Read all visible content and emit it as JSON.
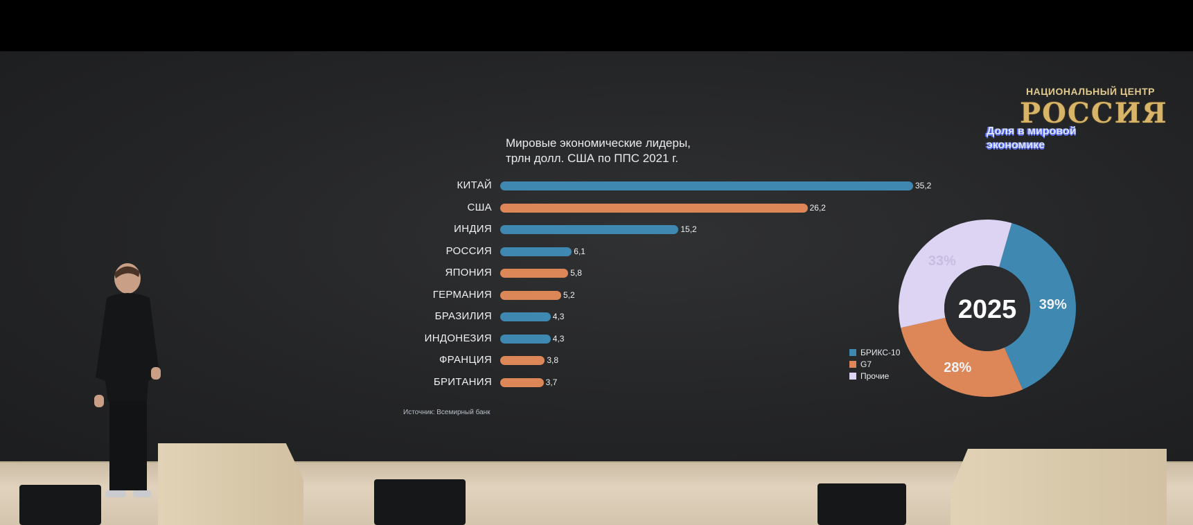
{
  "slide": {
    "chart_title": "Мировые экономические лидеры,\nтрлн долл. США по ППС 2021 г.",
    "source": "Источник: Всемирный банк",
    "brand_top": "НАЦИОНАЛЬНЫЙ ЦЕНТР",
    "brand_logo": "РОССИЯ",
    "share_title": "Доля в мировой\nэкономике",
    "donut_center": "2025"
  },
  "colors": {
    "brics": "#3f88b2",
    "g7": "#dd8758",
    "other": "#ddd3f3",
    "donut_hole": "#2b2c2f"
  },
  "chart_data": [
    {
      "type": "bar",
      "title": "Мировые экономические лидеры, трлн долл. США по ППС 2021 г.",
      "orientation": "horizontal",
      "categories": [
        "КИТАЙ",
        "США",
        "ИНДИЯ",
        "РОССИЯ",
        "ЯПОНИЯ",
        "ГЕРМАНИЯ",
        "БРАЗИЛИЯ",
        "ИНДОНЕЗИЯ",
        "ФРАНЦИЯ",
        "БРИТАНИЯ"
      ],
      "values": [
        35.2,
        26.2,
        15.2,
        6.1,
        5.8,
        5.2,
        4.3,
        4.3,
        3.8,
        3.7
      ],
      "value_labels": [
        "35,2",
        "26,2",
        "15,2",
        "6,1",
        "5,8",
        "5,2",
        "4,3",
        "4,3",
        "3,8",
        "3,7"
      ],
      "groups": [
        "brics",
        "g7",
        "brics",
        "brics",
        "g7",
        "g7",
        "brics",
        "brics",
        "g7",
        "g7"
      ],
      "xlim": [
        0,
        35.2
      ]
    },
    {
      "type": "pie",
      "title": "Доля в мировой экономике",
      "center_label": "2025",
      "categories": [
        "БРИКС-10",
        "G7",
        "Прочие"
      ],
      "values": [
        39,
        28,
        33
      ],
      "value_labels": [
        "39%",
        "28%",
        "33%"
      ],
      "legend": "bottom-left"
    }
  ]
}
